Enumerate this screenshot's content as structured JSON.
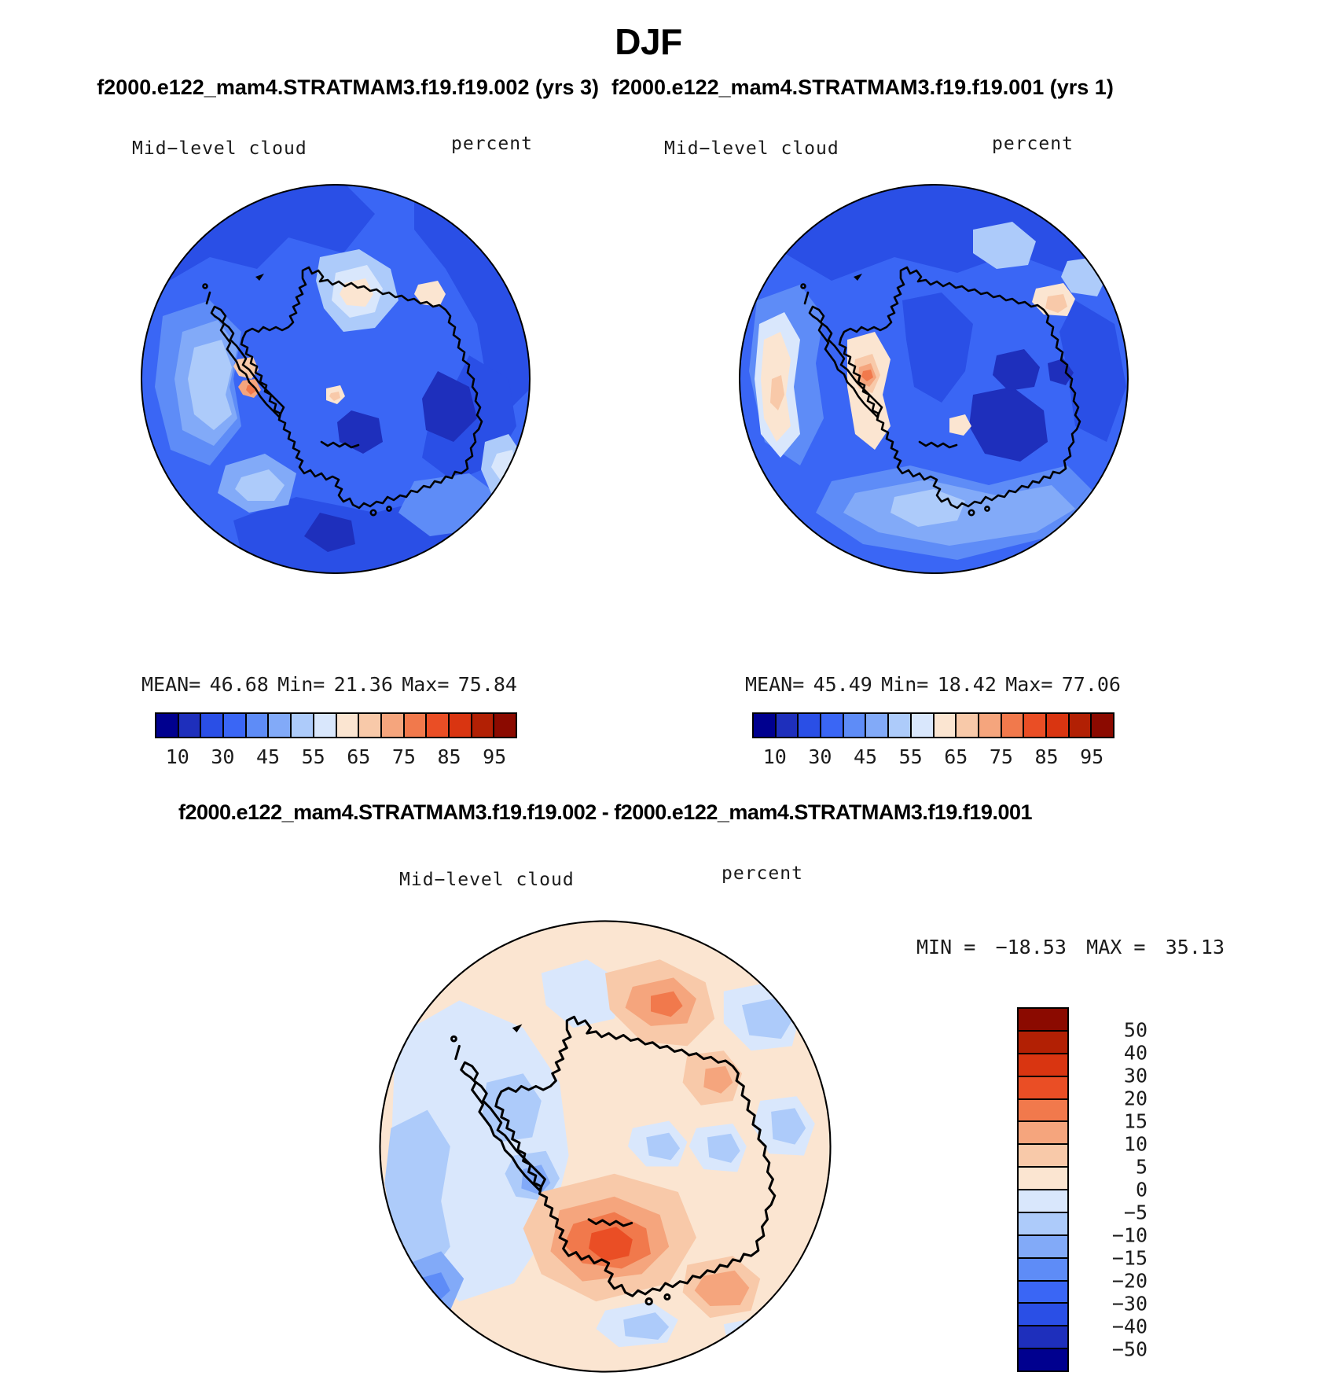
{
  "page": {
    "season_title": "DJF",
    "case1": "f2000.e122_mam4.STRATMAM3.f19.f19.002 (yrs 3)",
    "case2": "f2000.e122_mam4.STRATMAM3.f19.f19.001 (yrs 1)",
    "diff_title": "f2000.e122_mam4.STRATMAM3.f19.f19.002 - f2000.e122_mam4.STRATMAM3.f19.f19.001"
  },
  "panel_left": {
    "var_label": "Mid−level cloud",
    "units_label": "percent",
    "stats_parts": [
      "MEAN=",
      "46.68",
      "Min=",
      "21.36",
      "Max=",
      "75.84"
    ]
  },
  "panel_right": {
    "var_label": "Mid−level cloud",
    "units_label": "percent",
    "stats_parts": [
      "MEAN=",
      "45.49",
      "Min=",
      "18.42",
      "Max=",
      "77.06"
    ]
  },
  "panel_diff": {
    "var_label": "Mid−level cloud",
    "units_label": "percent",
    "minmax_parts": [
      "MIN =",
      "−18.53",
      "MAX =",
      "35.13"
    ]
  },
  "chart_data": [
    {
      "type": "heatmap",
      "panel": "top-left",
      "projection": "south-polar-stereographic",
      "title": "Mid−level cloud",
      "units": "percent",
      "case": "f2000.e122_mam4.STRATMAM3.f19.f19.002",
      "years": "yrs 3",
      "season": "DJF",
      "stats": {
        "mean": 46.68,
        "min": 21.36,
        "max": 75.84
      },
      "levels": [
        10,
        20,
        30,
        40,
        45,
        50,
        55,
        60,
        65,
        70,
        75,
        80,
        85,
        90,
        95
      ],
      "tick_labels": [
        "10",
        "30",
        "45",
        "55",
        "65",
        "75",
        "85",
        "95"
      ],
      "palette": [
        "#00008F",
        "#1E2FBC",
        "#2A4FE6",
        "#3A66F5",
        "#5E8CF7",
        "#82AAF8",
        "#ADCBFA",
        "#D9E7FC",
        "#FBE5D1",
        "#F8C9A9",
        "#F5A57D",
        "#F1794C",
        "#EA4E25",
        "#D93511",
        "#B22004",
        "#8B0A00"
      ]
    },
    {
      "type": "heatmap",
      "panel": "top-right",
      "projection": "south-polar-stereographic",
      "title": "Mid−level cloud",
      "units": "percent",
      "case": "f2000.e122_mam4.STRATMAM3.f19.f19.001",
      "years": "yrs 1",
      "season": "DJF",
      "stats": {
        "mean": 45.49,
        "min": 18.42,
        "max": 77.06
      },
      "levels": [
        10,
        20,
        30,
        40,
        45,
        50,
        55,
        60,
        65,
        70,
        75,
        80,
        85,
        90,
        95
      ],
      "tick_labels": [
        "10",
        "30",
        "45",
        "55",
        "65",
        "75",
        "85",
        "95"
      ],
      "palette": [
        "#00008F",
        "#1E2FBC",
        "#2A4FE6",
        "#3A66F5",
        "#5E8CF7",
        "#82AAF8",
        "#ADCBFA",
        "#D9E7FC",
        "#FBE5D1",
        "#F8C9A9",
        "#F5A57D",
        "#F1794C",
        "#EA4E25",
        "#D93511",
        "#B22004",
        "#8B0A00"
      ]
    },
    {
      "type": "heatmap",
      "panel": "bottom-difference",
      "projection": "south-polar-stereographic",
      "title": "Mid−level cloud",
      "units": "percent",
      "expression": "f2000.e122_mam4.STRATMAM3.f19.f19.002 - f2000.e122_mam4.STRATMAM3.f19.f19.001",
      "stats": {
        "min": -18.53,
        "max": 35.13
      },
      "levels": [
        -50,
        -40,
        -30,
        -20,
        -15,
        -10,
        -5,
        0,
        5,
        10,
        15,
        20,
        30,
        40,
        50
      ],
      "tick_labels": [
        "50",
        "40",
        "30",
        "20",
        "15",
        "10",
        "5",
        "0",
        "−5",
        "−10",
        "−15",
        "−20",
        "−30",
        "−40",
        "−50"
      ],
      "palette": [
        "#8B0A00",
        "#B22004",
        "#D93511",
        "#EA4E25",
        "#F1794C",
        "#F5A57D",
        "#F8C9A9",
        "#FBE5D1",
        "#D9E7FC",
        "#ADCBFA",
        "#82AAF8",
        "#5E8CF7",
        "#3A66F5",
        "#2A4FE6",
        "#1E2FBC",
        "#00008F"
      ]
    }
  ]
}
